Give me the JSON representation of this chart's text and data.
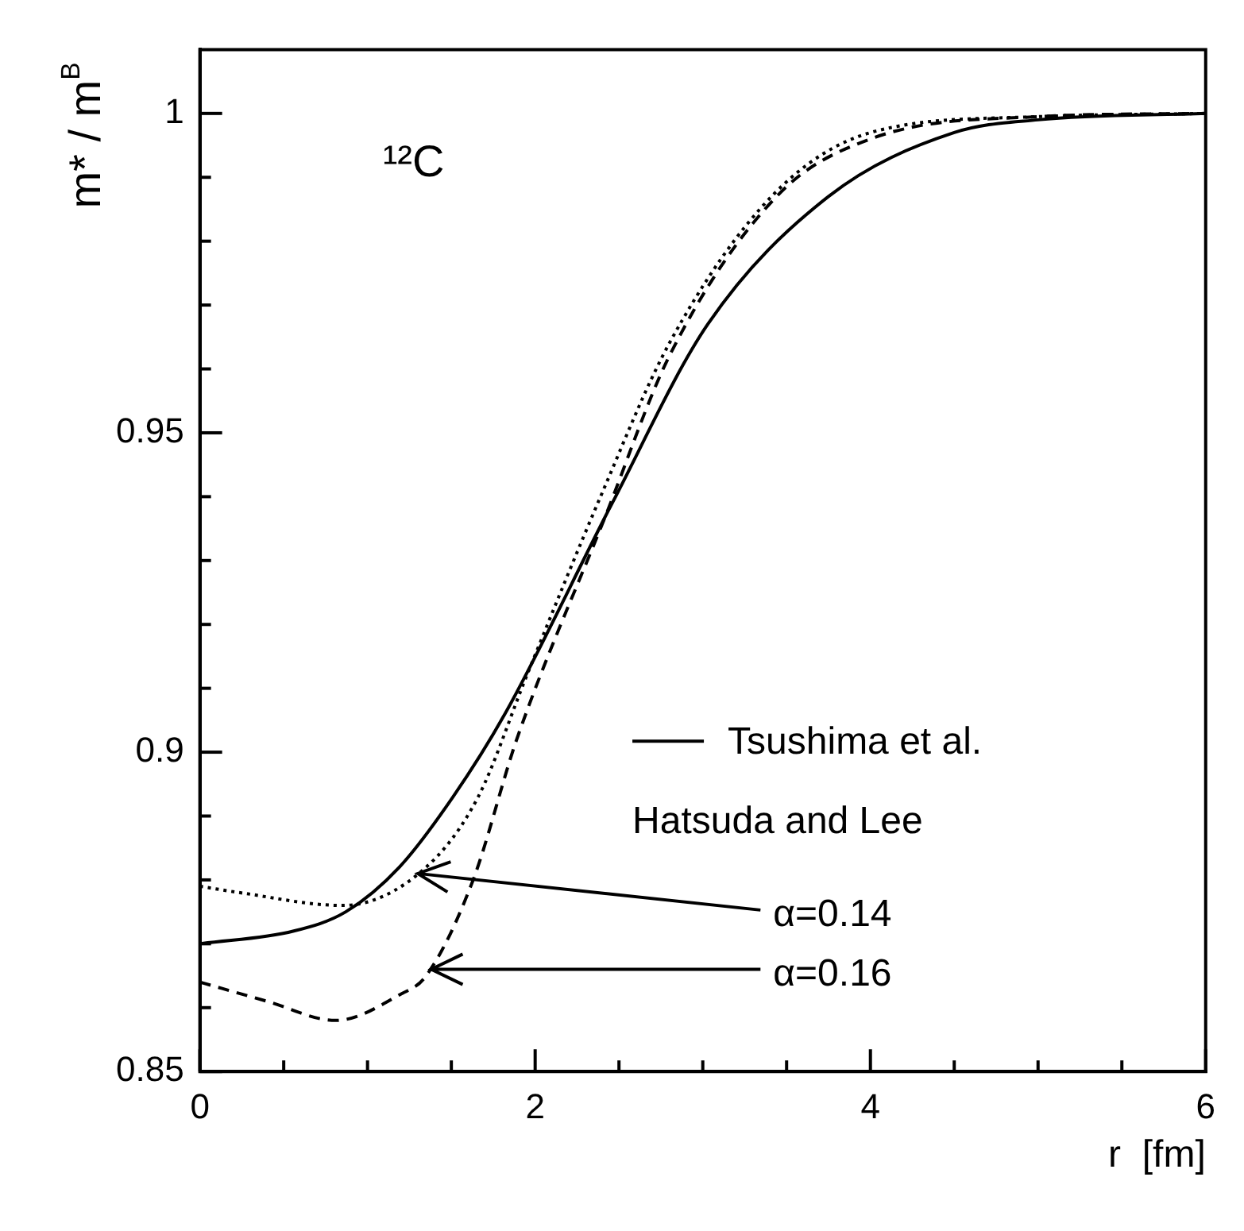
{
  "chart_data": {
    "type": "line",
    "xlabel": "r  [fm]",
    "ylabel": "m* / m$^{B}$",
    "xlim": [
      0,
      6
    ],
    "ylim": [
      0.85,
      1.01
    ],
    "xticks": [
      0,
      2,
      4,
      6
    ],
    "yticks": [
      0.85,
      0.9,
      0.95,
      1
    ],
    "grid": false,
    "legend": "bottom right",
    "legend_title": "Hatsuda and Lee",
    "marker": "none",
    "series": [
      {
        "name": "Tsushima et al.",
        "color": "#000000",
        "line_style": "solid",
        "x": [
          0,
          0.56,
          0.87,
          1.19,
          1.51,
          1.82,
          2.46,
          3.03,
          3.75,
          4.5,
          5,
          6
        ],
        "values": [
          0.87,
          0.872,
          0.875,
          0.882,
          0.893,
          0.906,
          0.939,
          0.967,
          0.987,
          0.997,
          0.999,
          1
        ]
      },
      {
        "color": "#000000",
        "line_style": "dotted",
        "x": [
          0,
          0.24,
          0.85,
          1.35,
          1.66,
          1.95,
          2.39,
          2.8,
          3.41,
          4,
          5,
          6
        ],
        "values": [
          0.879,
          0.878,
          0.876,
          0.882,
          0.893,
          0.912,
          0.94,
          0.964,
          0.987,
          0.997,
          0.9995,
          1
        ]
      },
      {
        "color": "#000000",
        "line_style": "dashed",
        "x": [
          0,
          0.4,
          0.81,
          1.19,
          1.35,
          1.63,
          1.89,
          2.42,
          2.8,
          3.44,
          4,
          5,
          6
        ],
        "values": [
          0.864,
          0.861,
          0.858,
          0.862,
          0.865,
          0.88,
          0.902,
          0.937,
          0.962,
          0.987,
          0.996,
          0.9995,
          1
        ]
      }
    ],
    "annotations": [
      "¹²C",
      {
        "text": "α=0.14",
        "x": 1.3,
        "y": 0.881
      },
      {
        "text": "α=0.16",
        "x": 1.38,
        "y": 0.866
      }
    ]
  }
}
